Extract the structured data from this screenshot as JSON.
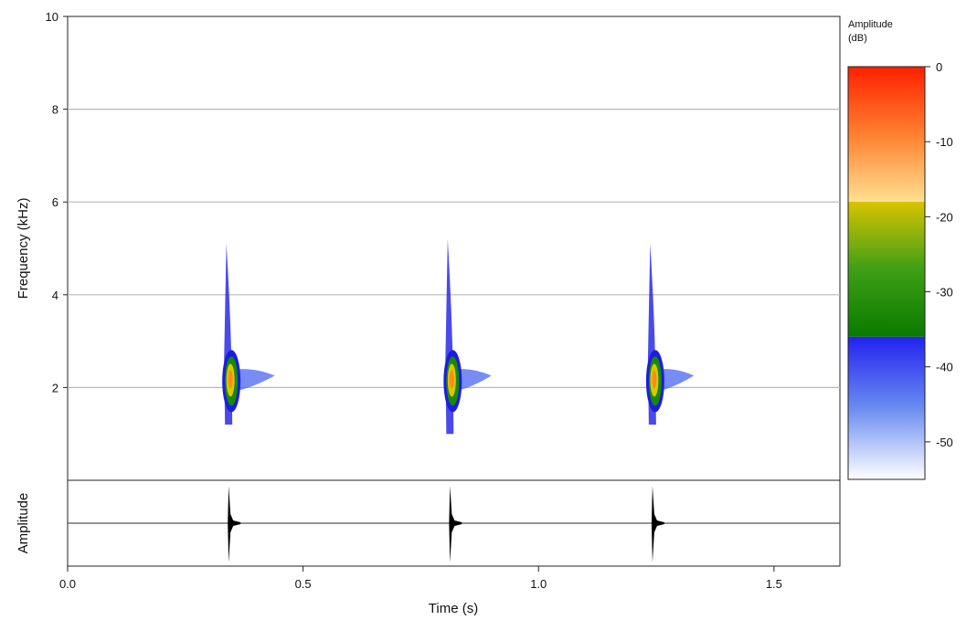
{
  "chart_data": {
    "type": "heatmap",
    "title": "",
    "spectrogram": {
      "ylabel": "Frequency (kHz)",
      "ylim": [
        0,
        10
      ],
      "yticks": [
        2,
        4,
        6,
        8,
        10
      ],
      "ytick_labels": [
        "2",
        "4",
        "6",
        "8",
        "10"
      ],
      "grid": true
    },
    "waveform": {
      "ylabel": "Amplitude"
    },
    "x_axis": {
      "label": "Time (s)",
      "xlim": [
        0.0,
        1.64
      ],
      "ticks": [
        0.0,
        0.5,
        1.0,
        1.5
      ],
      "tick_labels": [
        "0.0",
        "0.5",
        "1.0",
        "1.5"
      ]
    },
    "colorbar": {
      "label_line1": "Amplitude",
      "label_line2": "(dB)",
      "range": [
        -55,
        0
      ],
      "ticks": [
        0,
        -10,
        -20,
        -30,
        -40,
        -50
      ],
      "tick_labels": [
        "0",
        "-10",
        "-20",
        "-30",
        "-40",
        "-50"
      ],
      "bands": [
        {
          "from": 0,
          "to": -18,
          "colors": [
            "#ff2000",
            "#ff8030",
            "#ffe090"
          ]
        },
        {
          "from": -18,
          "to": -36,
          "colors": [
            "#d8c400",
            "#3f9f16",
            "#0a7a00"
          ]
        },
        {
          "from": -36,
          "to": -55,
          "colors": [
            "#2222f0",
            "#6a8cf0",
            "#ffffff"
          ]
        }
      ]
    },
    "events": [
      {
        "time": 0.34,
        "freq_peak": 2.1,
        "freq_min": 1.2,
        "freq_max": 5.1,
        "tail_end_time": 0.44
      },
      {
        "time": 0.81,
        "freq_peak": 2.1,
        "freq_min": 1.0,
        "freq_max": 5.2,
        "tail_end_time": 0.9
      },
      {
        "time": 1.24,
        "freq_peak": 2.1,
        "freq_min": 1.2,
        "freq_max": 5.1,
        "tail_end_time": 1.33
      }
    ]
  }
}
